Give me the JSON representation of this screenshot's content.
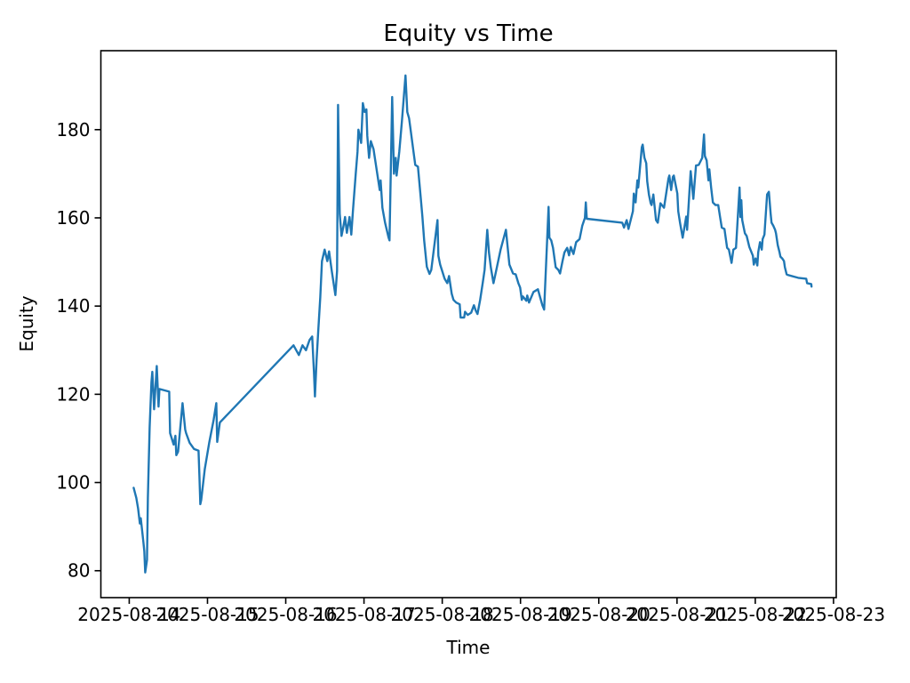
{
  "figure": {
    "title": "Equity vs Time",
    "xlabel": "Time",
    "ylabel": "Equity"
  },
  "chart_data": {
    "type": "line",
    "title": "Equity vs Time",
    "xlabel": "Time",
    "ylabel": "Equity",
    "line_color": "#1f77b4",
    "background": "#ffffff",
    "grid": false,
    "legend": "none",
    "x_tick_labels": [
      "2025-08-14",
      "2025-08-15",
      "2025-08-16",
      "2025-08-17",
      "2025-08-18",
      "2025-08-19",
      "2025-08-20",
      "2025-08-21",
      "2025-08-22",
      "2025-08-23"
    ],
    "y_ticks": [
      80,
      100,
      120,
      140,
      160,
      180
    ],
    "ylim": [
      73.9,
      197.9
    ],
    "xlim": [
      "2025-08-13 15:18",
      "2025-08-23 00:50"
    ],
    "points": [
      [
        "2025-08-14 01:22",
        98.8
      ],
      [
        "2025-08-14 02:11",
        96.5
      ],
      [
        "2025-08-14 02:44",
        94.1
      ],
      [
        "2025-08-14 03:16",
        90.7
      ],
      [
        "2025-08-14 03:32",
        91.9
      ],
      [
        "2025-08-14 03:49",
        90.1
      ],
      [
        "2025-08-14 04:22",
        86.4
      ],
      [
        "2025-08-14 04:38",
        84.4
      ],
      [
        "2025-08-14 04:54",
        79.6
      ],
      [
        "2025-08-14 05:27",
        82.4
      ],
      [
        "2025-08-14 05:43",
        96.5
      ],
      [
        "2025-08-14 06:16",
        112.6
      ],
      [
        "2025-08-14 06:49",
        122.7
      ],
      [
        "2025-08-14 07:05",
        125.1
      ],
      [
        "2025-08-14 07:38",
        116.6
      ],
      [
        "2025-08-14 08:27",
        126.4
      ],
      [
        "2025-08-14 08:59",
        117.2
      ],
      [
        "2025-08-14 09:16",
        121.2
      ],
      [
        "2025-08-14 12:16",
        120.6
      ],
      [
        "2025-08-14 12:32",
        111.2
      ],
      [
        "2025-08-14 13:37",
        108.6
      ],
      [
        "2025-08-14 14:10",
        110.6
      ],
      [
        "2025-08-14 14:26",
        106.2
      ],
      [
        "2025-08-14 14:59",
        107.0
      ],
      [
        "2025-08-14 16:21",
        118.0
      ],
      [
        "2025-08-14 17:10",
        112.0
      ],
      [
        "2025-08-14 17:26",
        111.2
      ],
      [
        "2025-08-14 18:32",
        109.0
      ],
      [
        "2025-08-14 19:53",
        107.6
      ],
      [
        "2025-08-14 21:15",
        107.2
      ],
      [
        "2025-08-14 21:31",
        101.5
      ],
      [
        "2025-08-14 21:48",
        95.1
      ],
      [
        "2025-08-14 22:04",
        96.0
      ],
      [
        "2025-08-14 23:10",
        103.0
      ],
      [
        "2025-08-15 00:31",
        109.0
      ],
      [
        "2025-08-15 01:53",
        114.2
      ],
      [
        "2025-08-15 02:42",
        118.0
      ],
      [
        "2025-08-15 02:58",
        109.2
      ],
      [
        "2025-08-15 03:47",
        113.6
      ],
      [
        "2025-08-16 02:24",
        131.1
      ],
      [
        "2025-08-16 04:02",
        128.9
      ],
      [
        "2025-08-16 05:08",
        131.1
      ],
      [
        "2025-08-16 06:13",
        130.0
      ],
      [
        "2025-08-16 07:18",
        132.3
      ],
      [
        "2025-08-16 08:07",
        133.1
      ],
      [
        "2025-08-16 08:40",
        125.0
      ],
      [
        "2025-08-16 08:57",
        119.5
      ],
      [
        "2025-08-16 09:29",
        128.0
      ],
      [
        "2025-08-16 10:02",
        135.0
      ],
      [
        "2025-08-16 10:35",
        142.0
      ],
      [
        "2025-08-16 11:07",
        150.2
      ],
      [
        "2025-08-16 11:56",
        152.8
      ],
      [
        "2025-08-16 12:45",
        150.2
      ],
      [
        "2025-08-16 13:18",
        152.4
      ],
      [
        "2025-08-16 14:07",
        148.0
      ],
      [
        "2025-08-16 15:13",
        142.5
      ],
      [
        "2025-08-16 15:45",
        148.0
      ],
      [
        "2025-08-16 16:02",
        185.6
      ],
      [
        "2025-08-16 16:34",
        160.9
      ],
      [
        "2025-08-16 17:07",
        155.9
      ],
      [
        "2025-08-16 17:40",
        158.0
      ],
      [
        "2025-08-16 18:12",
        160.2
      ],
      [
        "2025-08-16 18:45",
        156.6
      ],
      [
        "2025-08-16 19:34",
        160.2
      ],
      [
        "2025-08-16 20:07",
        156.2
      ],
      [
        "2025-08-16 20:39",
        162.0
      ],
      [
        "2025-08-16 21:28",
        170.0
      ],
      [
        "2025-08-16 22:01",
        175.0
      ],
      [
        "2025-08-16 22:17",
        180.0
      ],
      [
        "2025-08-16 23:07",
        177.0
      ],
      [
        "2025-08-16 23:39",
        186.0
      ],
      [
        "2025-08-17 00:12",
        184.0
      ],
      [
        "2025-08-17 00:45",
        184.6
      ],
      [
        "2025-08-17 01:01",
        178.6
      ],
      [
        "2025-08-17 01:34",
        173.6
      ],
      [
        "2025-08-17 02:06",
        177.4
      ],
      [
        "2025-08-17 02:55",
        175.6
      ],
      [
        "2025-08-17 04:50",
        166.3
      ],
      [
        "2025-08-17 05:06",
        168.5
      ],
      [
        "2025-08-17 05:39",
        162.3
      ],
      [
        "2025-08-17 06:28",
        158.9
      ],
      [
        "2025-08-17 07:33",
        155.5
      ],
      [
        "2025-08-17 07:50",
        154.9
      ],
      [
        "2025-08-17 08:39",
        187.4
      ],
      [
        "2025-08-17 09:11",
        170.0
      ],
      [
        "2025-08-17 09:44",
        173.6
      ],
      [
        "2025-08-17 10:00",
        169.6
      ],
      [
        "2025-08-17 10:49",
        175.0
      ],
      [
        "2025-08-17 11:38",
        182.0
      ],
      [
        "2025-08-17 12:44",
        192.3
      ],
      [
        "2025-08-17 13:17",
        184.0
      ],
      [
        "2025-08-17 13:49",
        182.6
      ],
      [
        "2025-08-17 14:22",
        179.6
      ],
      [
        "2025-08-17 15:11",
        175.0
      ],
      [
        "2025-08-17 15:44",
        172.0
      ],
      [
        "2025-08-17 16:33",
        171.6
      ],
      [
        "2025-08-17 17:22",
        164.9
      ],
      [
        "2025-08-17 17:54",
        160.3
      ],
      [
        "2025-08-17 18:27",
        154.9
      ],
      [
        "2025-08-17 19:16",
        148.9
      ],
      [
        "2025-08-17 20:05",
        147.3
      ],
      [
        "2025-08-17 20:38",
        148.2
      ],
      [
        "2025-08-17 21:11",
        151.4
      ],
      [
        "2025-08-17 22:32",
        159.5
      ],
      [
        "2025-08-17 22:49",
        151.4
      ],
      [
        "2025-08-17 23:21",
        149.4
      ],
      [
        "2025-08-18 00:10",
        147.5
      ],
      [
        "2025-08-18 00:43",
        146.2
      ],
      [
        "2025-08-18 01:32",
        145.2
      ],
      [
        "2025-08-18 02:05",
        146.8
      ],
      [
        "2025-08-18 02:54",
        142.8
      ],
      [
        "2025-08-18 03:27",
        141.4
      ],
      [
        "2025-08-18 04:16",
        140.8
      ],
      [
        "2025-08-18 05:21",
        140.4
      ],
      [
        "2025-08-18 05:37",
        137.4
      ],
      [
        "2025-08-18 06:43",
        137.4
      ],
      [
        "2025-08-18 06:59",
        138.7
      ],
      [
        "2025-08-18 07:48",
        138.0
      ],
      [
        "2025-08-18 08:53",
        138.5
      ],
      [
        "2025-08-18 09:43",
        140.2
      ],
      [
        "2025-08-18 10:15",
        139.0
      ],
      [
        "2025-08-18 10:48",
        138.2
      ],
      [
        "2025-08-18 11:37",
        141.4
      ],
      [
        "2025-08-18 12:26",
        145.4
      ],
      [
        "2025-08-18 12:59",
        148.2
      ],
      [
        "2025-08-18 13:48",
        157.3
      ],
      [
        "2025-08-18 14:20",
        152.2
      ],
      [
        "2025-08-18 14:53",
        148.8
      ],
      [
        "2025-08-18 15:42",
        145.2
      ],
      [
        "2025-08-18 16:31",
        148.0
      ],
      [
        "2025-08-18 17:53",
        152.8
      ],
      [
        "2025-08-18 19:31",
        157.3
      ],
      [
        "2025-08-18 20:36",
        149.4
      ],
      [
        "2025-08-18 21:42",
        147.4
      ],
      [
        "2025-08-18 22:31",
        147.2
      ],
      [
        "2025-08-18 23:20",
        145.2
      ],
      [
        "2025-08-18 23:53",
        144.2
      ],
      [
        "2025-08-19 00:25",
        141.4
      ],
      [
        "2025-08-19 00:42",
        142.2
      ],
      [
        "2025-08-19 01:47",
        141.2
      ],
      [
        "2025-08-19 02:04",
        142.4
      ],
      [
        "2025-08-19 02:36",
        140.8
      ],
      [
        "2025-08-19 03:58",
        143.2
      ],
      [
        "2025-08-19 05:20",
        143.8
      ],
      [
        "2025-08-19 06:42",
        140.2
      ],
      [
        "2025-08-19 07:14",
        139.2
      ],
      [
        "2025-08-19 08:36",
        162.5
      ],
      [
        "2025-08-19 08:52",
        155.5
      ],
      [
        "2025-08-19 09:25",
        154.9
      ],
      [
        "2025-08-19 09:58",
        153.2
      ],
      [
        "2025-08-19 10:47",
        148.8
      ],
      [
        "2025-08-19 11:36",
        148.2
      ],
      [
        "2025-08-19 12:08",
        147.4
      ],
      [
        "2025-08-19 12:57",
        150.4
      ],
      [
        "2025-08-19 13:30",
        152.2
      ],
      [
        "2025-08-19 14:19",
        153.2
      ],
      [
        "2025-08-19 14:52",
        151.5
      ],
      [
        "2025-08-19 15:25",
        153.4
      ],
      [
        "2025-08-19 16:14",
        151.8
      ],
      [
        "2025-08-19 17:03",
        154.5
      ],
      [
        "2025-08-19 18:08",
        155.2
      ],
      [
        "2025-08-19 18:57",
        158.2
      ],
      [
        "2025-08-19 19:46",
        160.0
      ],
      [
        "2025-08-19 20:02",
        163.5
      ],
      [
        "2025-08-19 20:19",
        159.8
      ],
      [
        "2025-08-20 07:13",
        158.9
      ],
      [
        "2025-08-20 07:45",
        157.8
      ],
      [
        "2025-08-20 08:34",
        159.5
      ],
      [
        "2025-08-20 09:07",
        157.5
      ],
      [
        "2025-08-20 10:29",
        161.5
      ],
      [
        "2025-08-20 10:45",
        165.5
      ],
      [
        "2025-08-20 11:18",
        163.5
      ],
      [
        "2025-08-20 11:51",
        168.5
      ],
      [
        "2025-08-20 12:07",
        166.9
      ],
      [
        "2025-08-20 13:12",
        176.0
      ],
      [
        "2025-08-20 13:29",
        176.6
      ],
      [
        "2025-08-20 14:01",
        173.6
      ],
      [
        "2025-08-20 14:34",
        172.4
      ],
      [
        "2025-08-20 14:51",
        168.3
      ],
      [
        "2025-08-20 15:23",
        165.3
      ],
      [
        "2025-08-20 15:56",
        163.3
      ],
      [
        "2025-08-20 16:12",
        162.9
      ],
      [
        "2025-08-20 16:45",
        165.3
      ],
      [
        "2025-08-20 17:34",
        159.5
      ],
      [
        "2025-08-20 18:07",
        158.9
      ],
      [
        "2025-08-20 18:56",
        163.3
      ],
      [
        "2025-08-20 20:01",
        162.3
      ],
      [
        "2025-08-20 21:23",
        168.9
      ],
      [
        "2025-08-20 21:39",
        169.6
      ],
      [
        "2025-08-20 22:12",
        166.3
      ],
      [
        "2025-08-20 22:44",
        169.3
      ],
      [
        "2025-08-20 23:01",
        169.6
      ],
      [
        "2025-08-21 00:06",
        165.5
      ],
      [
        "2025-08-21 00:23",
        161.5
      ],
      [
        "2025-08-21 00:55",
        158.9
      ],
      [
        "2025-08-21 01:44",
        155.5
      ],
      [
        "2025-08-21 02:50",
        160.3
      ],
      [
        "2025-08-21 03:06",
        157.3
      ],
      [
        "2025-08-21 04:11",
        170.6
      ],
      [
        "2025-08-21 05:01",
        164.3
      ],
      [
        "2025-08-21 05:50",
        171.9
      ],
      [
        "2025-08-21 06:39",
        172.0
      ],
      [
        "2025-08-21 07:44",
        173.6
      ],
      [
        "2025-08-21 08:17",
        178.9
      ],
      [
        "2025-08-21 08:33",
        174.0
      ],
      [
        "2025-08-21 09:06",
        173.0
      ],
      [
        "2025-08-21 09:38",
        168.5
      ],
      [
        "2025-08-21 09:55",
        171.0
      ],
      [
        "2025-08-21 10:28",
        166.9
      ],
      [
        "2025-08-21 11:00",
        163.5
      ],
      [
        "2025-08-21 11:49",
        162.9
      ],
      [
        "2025-08-21 12:38",
        162.9
      ],
      [
        "2025-08-21 13:11",
        160.3
      ],
      [
        "2025-08-21 13:44",
        157.8
      ],
      [
        "2025-08-21 14:33",
        157.5
      ],
      [
        "2025-08-21 15:22",
        153.2
      ],
      [
        "2025-08-21 15:54",
        152.8
      ],
      [
        "2025-08-21 16:43",
        149.8
      ],
      [
        "2025-08-21 17:16",
        152.8
      ],
      [
        "2025-08-21 18:05",
        153.2
      ],
      [
        "2025-08-21 19:11",
        166.9
      ],
      [
        "2025-08-21 19:27",
        160.2
      ],
      [
        "2025-08-21 19:43",
        164.0
      ],
      [
        "2025-08-21 20:00",
        159.5
      ],
      [
        "2025-08-21 20:32",
        157.5
      ],
      [
        "2025-08-21 20:49",
        156.5
      ],
      [
        "2025-08-21 21:22",
        155.9
      ],
      [
        "2025-08-21 22:11",
        153.4
      ],
      [
        "2025-08-21 23:16",
        151.4
      ],
      [
        "2025-08-21 23:32",
        149.4
      ],
      [
        "2025-08-22 00:05",
        150.8
      ],
      [
        "2025-08-22 00:38",
        149.2
      ],
      [
        "2025-08-22 00:54",
        152.2
      ],
      [
        "2025-08-22 01:27",
        154.5
      ],
      [
        "2025-08-22 01:59",
        152.8
      ],
      [
        "2025-08-22 02:16",
        155.2
      ],
      [
        "2025-08-22 02:49",
        156.2
      ],
      [
        "2025-08-22 03:38",
        165.3
      ],
      [
        "2025-08-22 04:10",
        165.9
      ],
      [
        "2025-08-22 04:43",
        160.9
      ],
      [
        "2025-08-22 04:59",
        158.9
      ],
      [
        "2025-08-22 05:32",
        158.2
      ],
      [
        "2025-08-22 06:05",
        157.3
      ],
      [
        "2025-08-22 06:21",
        156.5
      ],
      [
        "2025-08-22 06:54",
        153.8
      ],
      [
        "2025-08-22 07:27",
        152.2
      ],
      [
        "2025-08-22 07:43",
        151.2
      ],
      [
        "2025-08-22 08:16",
        150.8
      ],
      [
        "2025-08-22 08:48",
        150.2
      ],
      [
        "2025-08-22 09:05",
        148.8
      ],
      [
        "2025-08-22 09:37",
        147.2
      ],
      [
        "2025-08-22 10:10",
        147.0
      ],
      [
        "2025-08-22 13:10",
        146.4
      ],
      [
        "2025-08-22 15:37",
        146.2
      ],
      [
        "2025-08-22 15:53",
        145.2
      ],
      [
        "2025-08-22 17:10",
        145.0
      ],
      [
        "2025-08-22 17:15",
        144.4
      ]
    ]
  }
}
